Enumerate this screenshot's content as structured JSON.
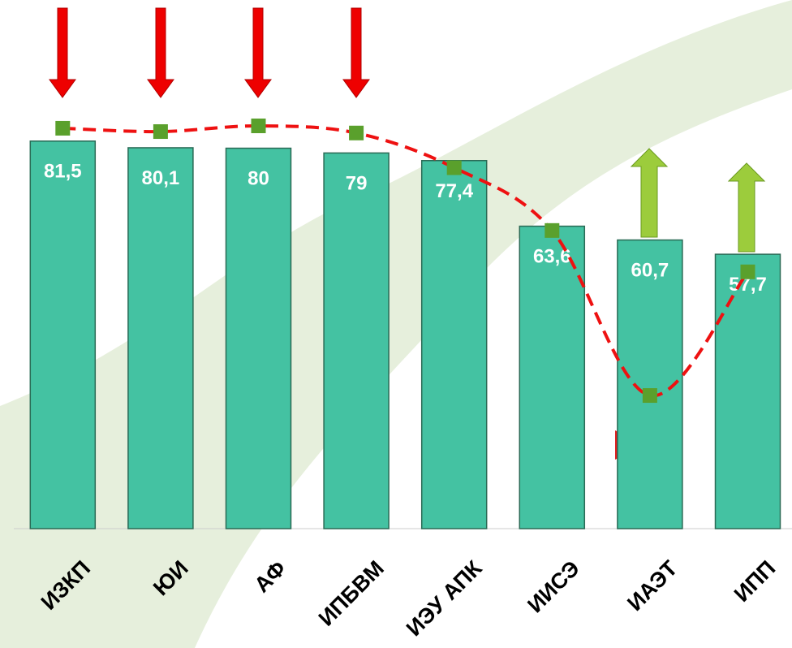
{
  "chart_data": {
    "type": "combo",
    "categories": [
      "ИЗКП",
      "ЮИ",
      "АФ",
      "ИПБВМ",
      "ИЭУ АПК",
      "ИИСЭ",
      "ИАЭТ",
      "ИПП"
    ],
    "series": [
      {
        "type": "bar",
        "color": "#44c2a2",
        "values": [
          81.5,
          80.1,
          80,
          79,
          77.4,
          63.6,
          60.7,
          57.7
        ],
        "value_labels": [
          "81,5",
          "80,1",
          "80",
          "79",
          "77,4",
          "63,6",
          "60,7",
          "57,7"
        ]
      },
      {
        "type": "line",
        "color": "#ee1111",
        "marker_color": "#5aa02c",
        "values": [
          84.2,
          83.5,
          84.7,
          83.2,
          75.9,
          62.7,
          28.0,
          54.0
        ]
      }
    ],
    "ylim": [
      0,
      111
    ]
  }
}
